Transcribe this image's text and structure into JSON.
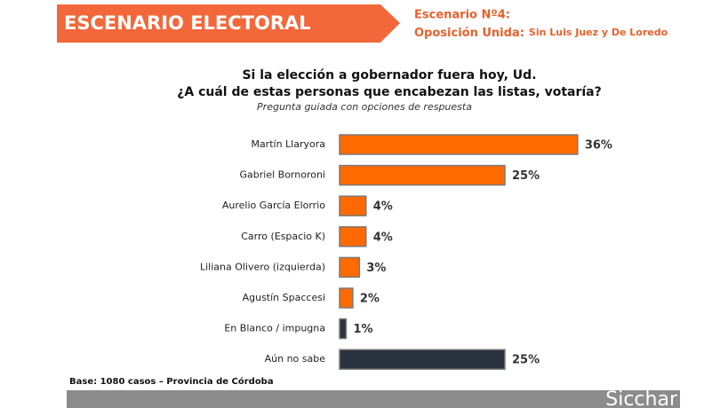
{
  "header": {
    "banner": "ESCENARIO ELECTORAL",
    "scenario": "Escenario Nº4:",
    "scenario_name": "Oposición Unida:",
    "scenario_note": "Sin Luis Juez y De Loredo"
  },
  "chart_data": {
    "type": "bar",
    "orientation": "horizontal",
    "title_lines": [
      "Si la elección a gobernador fuera hoy, Ud.",
      "¿A cuál de estas personas que encabezan las listas, votaría?"
    ],
    "subtitle": "Pregunta guiada con opciones de respuesta",
    "categories": [
      "Martín Llaryora",
      "Gabriel Bornoroni",
      "Aurelio García Elorrio",
      "Carro (Espacio K)",
      "Liliana Olivero (izquierda)",
      "Agustín Spaccesi",
      "En Blanco / impugna",
      "Aún no sabe"
    ],
    "values": [
      36,
      25,
      4,
      4,
      3,
      2,
      1,
      25
    ],
    "value_labels": [
      "36%",
      "25%",
      "4%",
      "4%",
      "3%",
      "2%",
      "1%",
      "25%"
    ],
    "colors": [
      "#ff6a00",
      "#ff6a00",
      "#ff6a00",
      "#ff6a00",
      "#ff6a00",
      "#ff6a00",
      "#2b3240",
      "#2b3240"
    ]
  },
  "footer": {
    "note": "Base: 1080 casos – Provincia de Córdoba",
    "logo": "Sicchar"
  }
}
